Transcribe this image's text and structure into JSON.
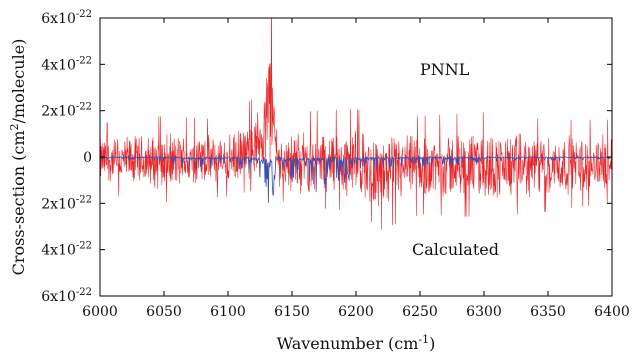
{
  "chart_data": {
    "type": "line",
    "xlabel": "Wavenumber (cm",
    "xlabel_sup": "-1",
    "xlabel_suffix": ")",
    "ylabel": "Cross-section (cm",
    "ylabel_sup": "2",
    "ylabel_suffix": "/molecule)",
    "xlim": [
      6000,
      6400
    ],
    "ylim": [
      -6e-22,
      6e-22
    ],
    "x_ticks": [
      6000,
      6050,
      6100,
      6150,
      6200,
      6250,
      6300,
      6350,
      6400
    ],
    "y_ticks": [
      {
        "value": 6e-22,
        "base": "6x10",
        "exp": "-22"
      },
      {
        "value": 4e-22,
        "base": "4x10",
        "exp": "-22"
      },
      {
        "value": 2e-22,
        "base": "2x10",
        "exp": "-22"
      },
      {
        "value": 0,
        "base": "0",
        "exp": ""
      },
      {
        "value": -2e-22,
        "base": "2x10",
        "exp": "-22"
      },
      {
        "value": -4e-22,
        "base": "4x10",
        "exp": "-22"
      },
      {
        "value": -6e-22,
        "base": "6x10",
        "exp": "-22"
      }
    ],
    "series": [
      {
        "name": "PNNL",
        "color": "#e8262a",
        "envelope": {
          "x": [
            6000,
            6050,
            6100,
            6120,
            6128,
            6133,
            6136,
            6140,
            6150,
            6200,
            6220,
            6250,
            6300,
            6350,
            6400
          ],
          "upper": [
            9e-23,
            1.1e-22,
            1e-22,
            1.6e-22,
            3e-22,
            5.8e-22,
            2.8e-22,
            1e-22,
            1.2e-22,
            1.3e-22,
            1e-22,
            1.1e-22,
            1.2e-22,
            1e-22,
            1e-22
          ],
          "lower": [
            -1.2e-22,
            -1.5e-22,
            -1.3e-22,
            -1.1e-22,
            -5e-23,
            -3e-23,
            -6e-23,
            -1.4e-22,
            -1.6e-22,
            -1.8e-22,
            -2.4e-22,
            -1.9e-22,
            -2e-22,
            -1.8e-22,
            -1.5e-22
          ]
        }
      },
      {
        "name": "Calculated",
        "color": "#3a4fb0",
        "envelope": {
          "x": [
            6000,
            6050,
            6080,
            6100,
            6120,
            6128,
            6133,
            6136,
            6140,
            6150,
            6170,
            6200,
            6220,
            6260,
            6270,
            6300,
            6400
          ],
          "upper": [
            2e-24,
            2e-24,
            2e-24,
            3e-24,
            5e-24,
            5e-24,
            5e-24,
            5e-24,
            5e-24,
            4e-24,
            4e-24,
            4e-24,
            3e-24,
            3e-24,
            3e-24,
            2e-24,
            2e-24
          ],
          "lower": [
            -1e-23,
            -2e-23,
            -6e-23,
            -5e-23,
            -9e-23,
            -2e-22,
            -3.6e-22,
            -1.5e-22,
            -8e-23,
            -1.2e-22,
            -1.6e-22,
            -9e-23,
            -5e-23,
            -4e-23,
            -5e-23,
            -2e-23,
            -1e-23
          ]
        }
      }
    ],
    "legend": [
      {
        "label": "PNNL",
        "color": "#e8262a",
        "placement": "upper-right"
      },
      {
        "label": "Calculated",
        "color": "#3a4fb0",
        "placement": "lower-right"
      }
    ]
  }
}
